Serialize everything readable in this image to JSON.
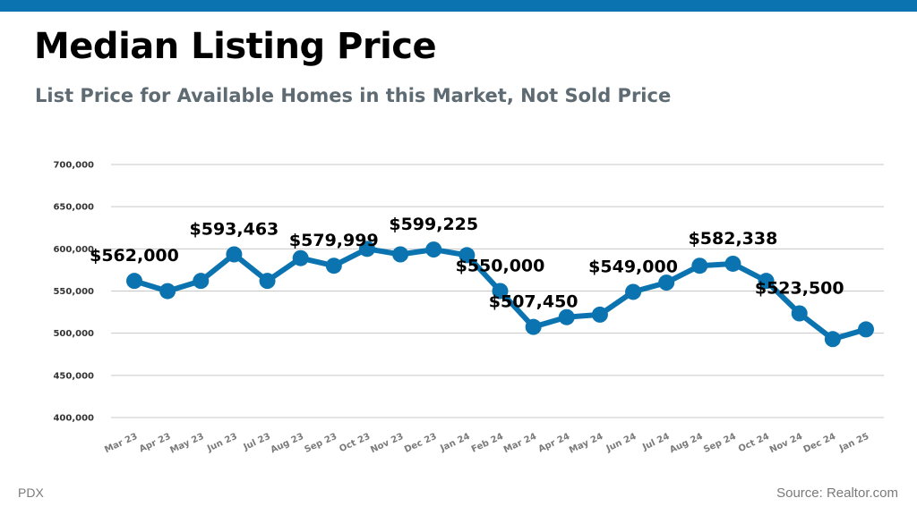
{
  "header": {
    "title": "Median Listing Price",
    "subtitle": "List Price for Available Homes in this Market, Not Sold Price",
    "bar_color": "#0b74b0"
  },
  "footer": {
    "left": "PDX",
    "right": "Source: Realtor.com"
  },
  "chart_data": {
    "type": "line",
    "categories": [
      "Mar 23",
      "Apr 23",
      "May 23",
      "Jun 23",
      "Jul 23",
      "Aug 23",
      "Sep 23",
      "Oct 23",
      "Nov 23",
      "Dec 23",
      "Jan 24",
      "Feb 24",
      "Mar 24",
      "Apr 24",
      "May 24",
      "Jun 24",
      "Jul 24",
      "Aug 24",
      "Sep 24",
      "Oct 24",
      "Nov 24",
      "Dec 24",
      "Jan 25"
    ],
    "series": [
      {
        "values": [
          562000,
          549900,
          562000,
          593463,
          562000,
          589000,
          579999,
          600000,
          593463,
          599225,
          592500,
          550000,
          507450,
          519000,
          522000,
          549000,
          560000,
          580000,
          582338,
          562000,
          523500,
          493000,
          504500
        ]
      }
    ],
    "data_labels": [
      {
        "index": 0,
        "text": "$562,000"
      },
      {
        "index": 3,
        "text": "$593,463"
      },
      {
        "index": 6,
        "text": "$579,999"
      },
      {
        "index": 9,
        "text": "$599,225"
      },
      {
        "index": 11,
        "text": "$550,000"
      },
      {
        "index": 12,
        "text": "$507,450"
      },
      {
        "index": 15,
        "text": "$549,000"
      },
      {
        "index": 18,
        "text": "$582,338"
      },
      {
        "index": 20,
        "text": "$523,500"
      }
    ],
    "y_ticks": [
      "400,000",
      "450,000",
      "500,000",
      "550,000",
      "600,000",
      "650,000",
      "700,000"
    ],
    "ylim": [
      400000,
      700000
    ],
    "grid": true,
    "line_color": "#0b74b0"
  }
}
